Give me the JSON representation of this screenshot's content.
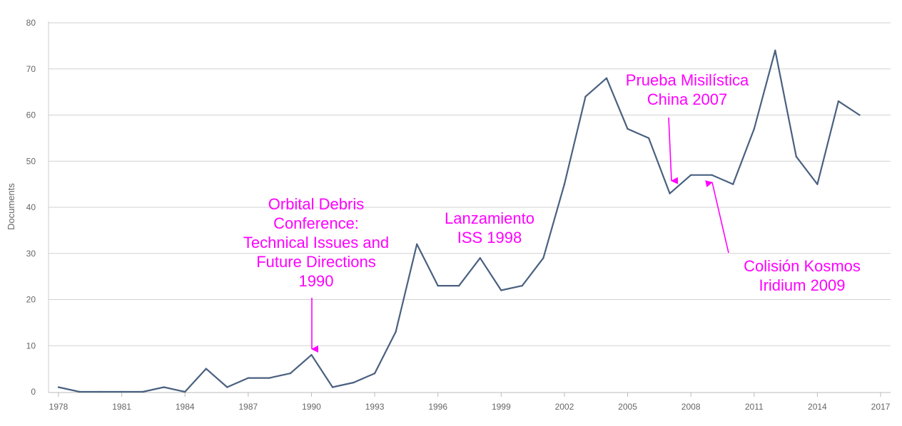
{
  "chart_data": {
    "type": "line",
    "ylabel": "Documents",
    "xlabel": "",
    "xlim": [
      1978,
      2017
    ],
    "ylim": [
      0,
      80
    ],
    "y_ticks": [
      0,
      10,
      20,
      30,
      40,
      50,
      60,
      70,
      80
    ],
    "x_ticks": [
      1978,
      1981,
      1984,
      1987,
      1990,
      1993,
      1996,
      1999,
      2002,
      2005,
      2008,
      2011,
      2014,
      2017
    ],
    "grid": true,
    "series": [
      {
        "color": "#4a6080",
        "x": [
          1978,
          1979,
          1980,
          1981,
          1982,
          1983,
          1984,
          1985,
          1986,
          1987,
          1988,
          1989,
          1990,
          1991,
          1992,
          1993,
          1994,
          1995,
          1996,
          1997,
          1998,
          1999,
          2000,
          2001,
          2002,
          2003,
          2004,
          2005,
          2006,
          2007,
          2008,
          2009,
          2010,
          2011,
          2012,
          2013,
          2014,
          2015,
          2016
        ],
        "y": [
          1,
          0,
          0,
          0,
          0,
          1,
          0,
          5,
          1,
          3,
          3,
          4,
          8,
          1,
          2,
          4,
          13,
          32,
          23,
          23,
          29,
          22,
          23,
          29,
          45,
          64,
          68,
          57,
          55,
          43,
          47,
          47,
          45,
          57,
          74,
          51,
          45,
          63,
          60
        ]
      }
    ],
    "annotations": [
      {
        "lines": [
          "Orbital Debris",
          "Conference:",
          "Technical Issues and",
          "Future Directions",
          "1990"
        ],
        "x": 1990,
        "y": 8,
        "color": "#ff00ff"
      },
      {
        "lines": [
          "Lanzamiento",
          "ISS 1998"
        ],
        "color": "#ff00ff"
      },
      {
        "lines": [
          "Prueba Misilística",
          "China 2007"
        ],
        "x": 2007,
        "y": 43,
        "color": "#ff00ff"
      },
      {
        "lines": [
          "Colisión Kosmos",
          "Iridium 2009"
        ],
        "x": 2009,
        "y": 47,
        "color": "#ff00ff"
      }
    ]
  }
}
